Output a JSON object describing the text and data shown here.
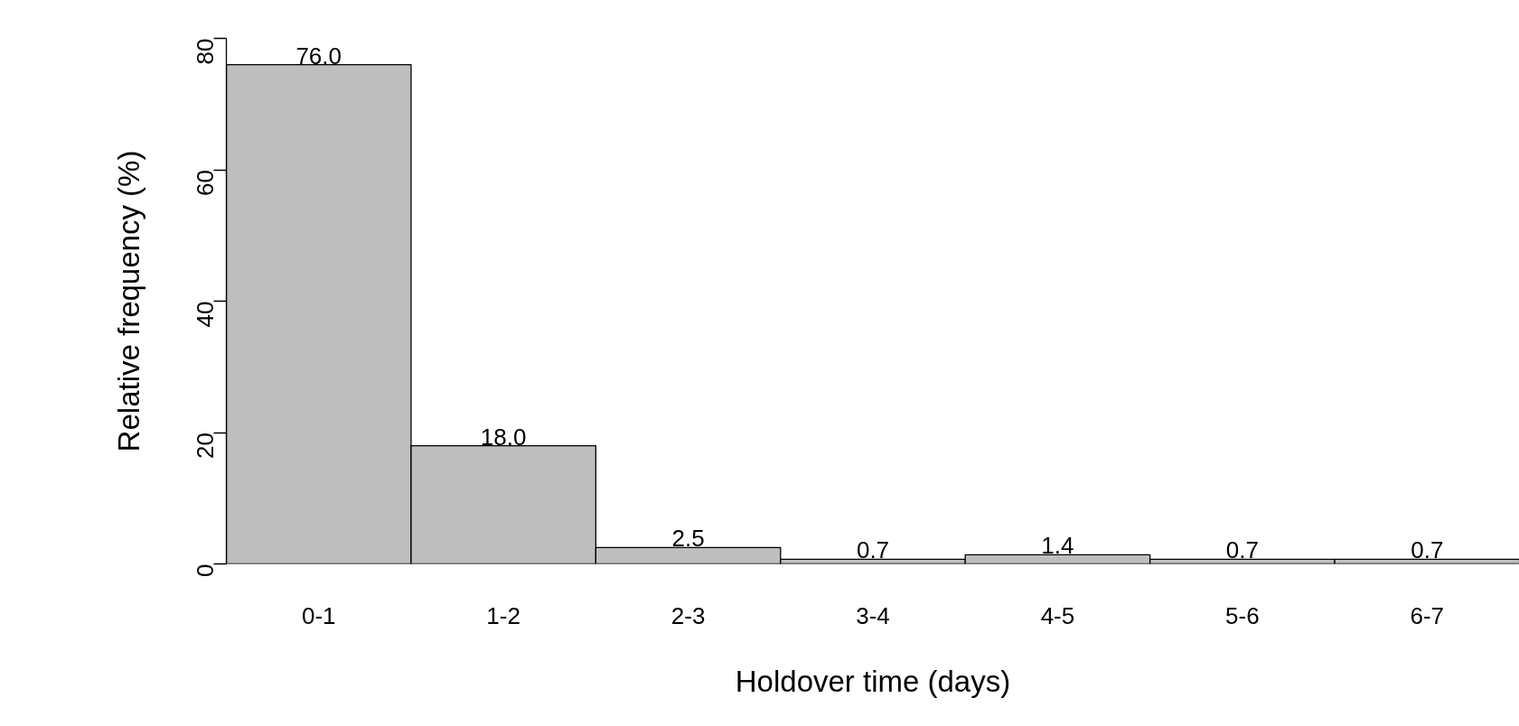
{
  "chart_data": {
    "type": "bar",
    "xlabel": "Holdover time (days)",
    "ylabel": "Relative frequency (%)",
    "categories": [
      "0-1",
      "1-2",
      "2-3",
      "3-4",
      "4-5",
      "5-6",
      "6-7"
    ],
    "values": [
      76.0,
      18.0,
      2.5,
      0.7,
      1.4,
      0.7,
      0.7
    ],
    "value_labels": [
      "76.0",
      "18.0",
      "2.5",
      "0.7",
      "1.4",
      "0.7",
      "0.7"
    ],
    "color": "#bebebe",
    "ylim": [
      0,
      80
    ],
    "yticks": [
      0,
      20,
      40,
      60,
      80
    ]
  }
}
